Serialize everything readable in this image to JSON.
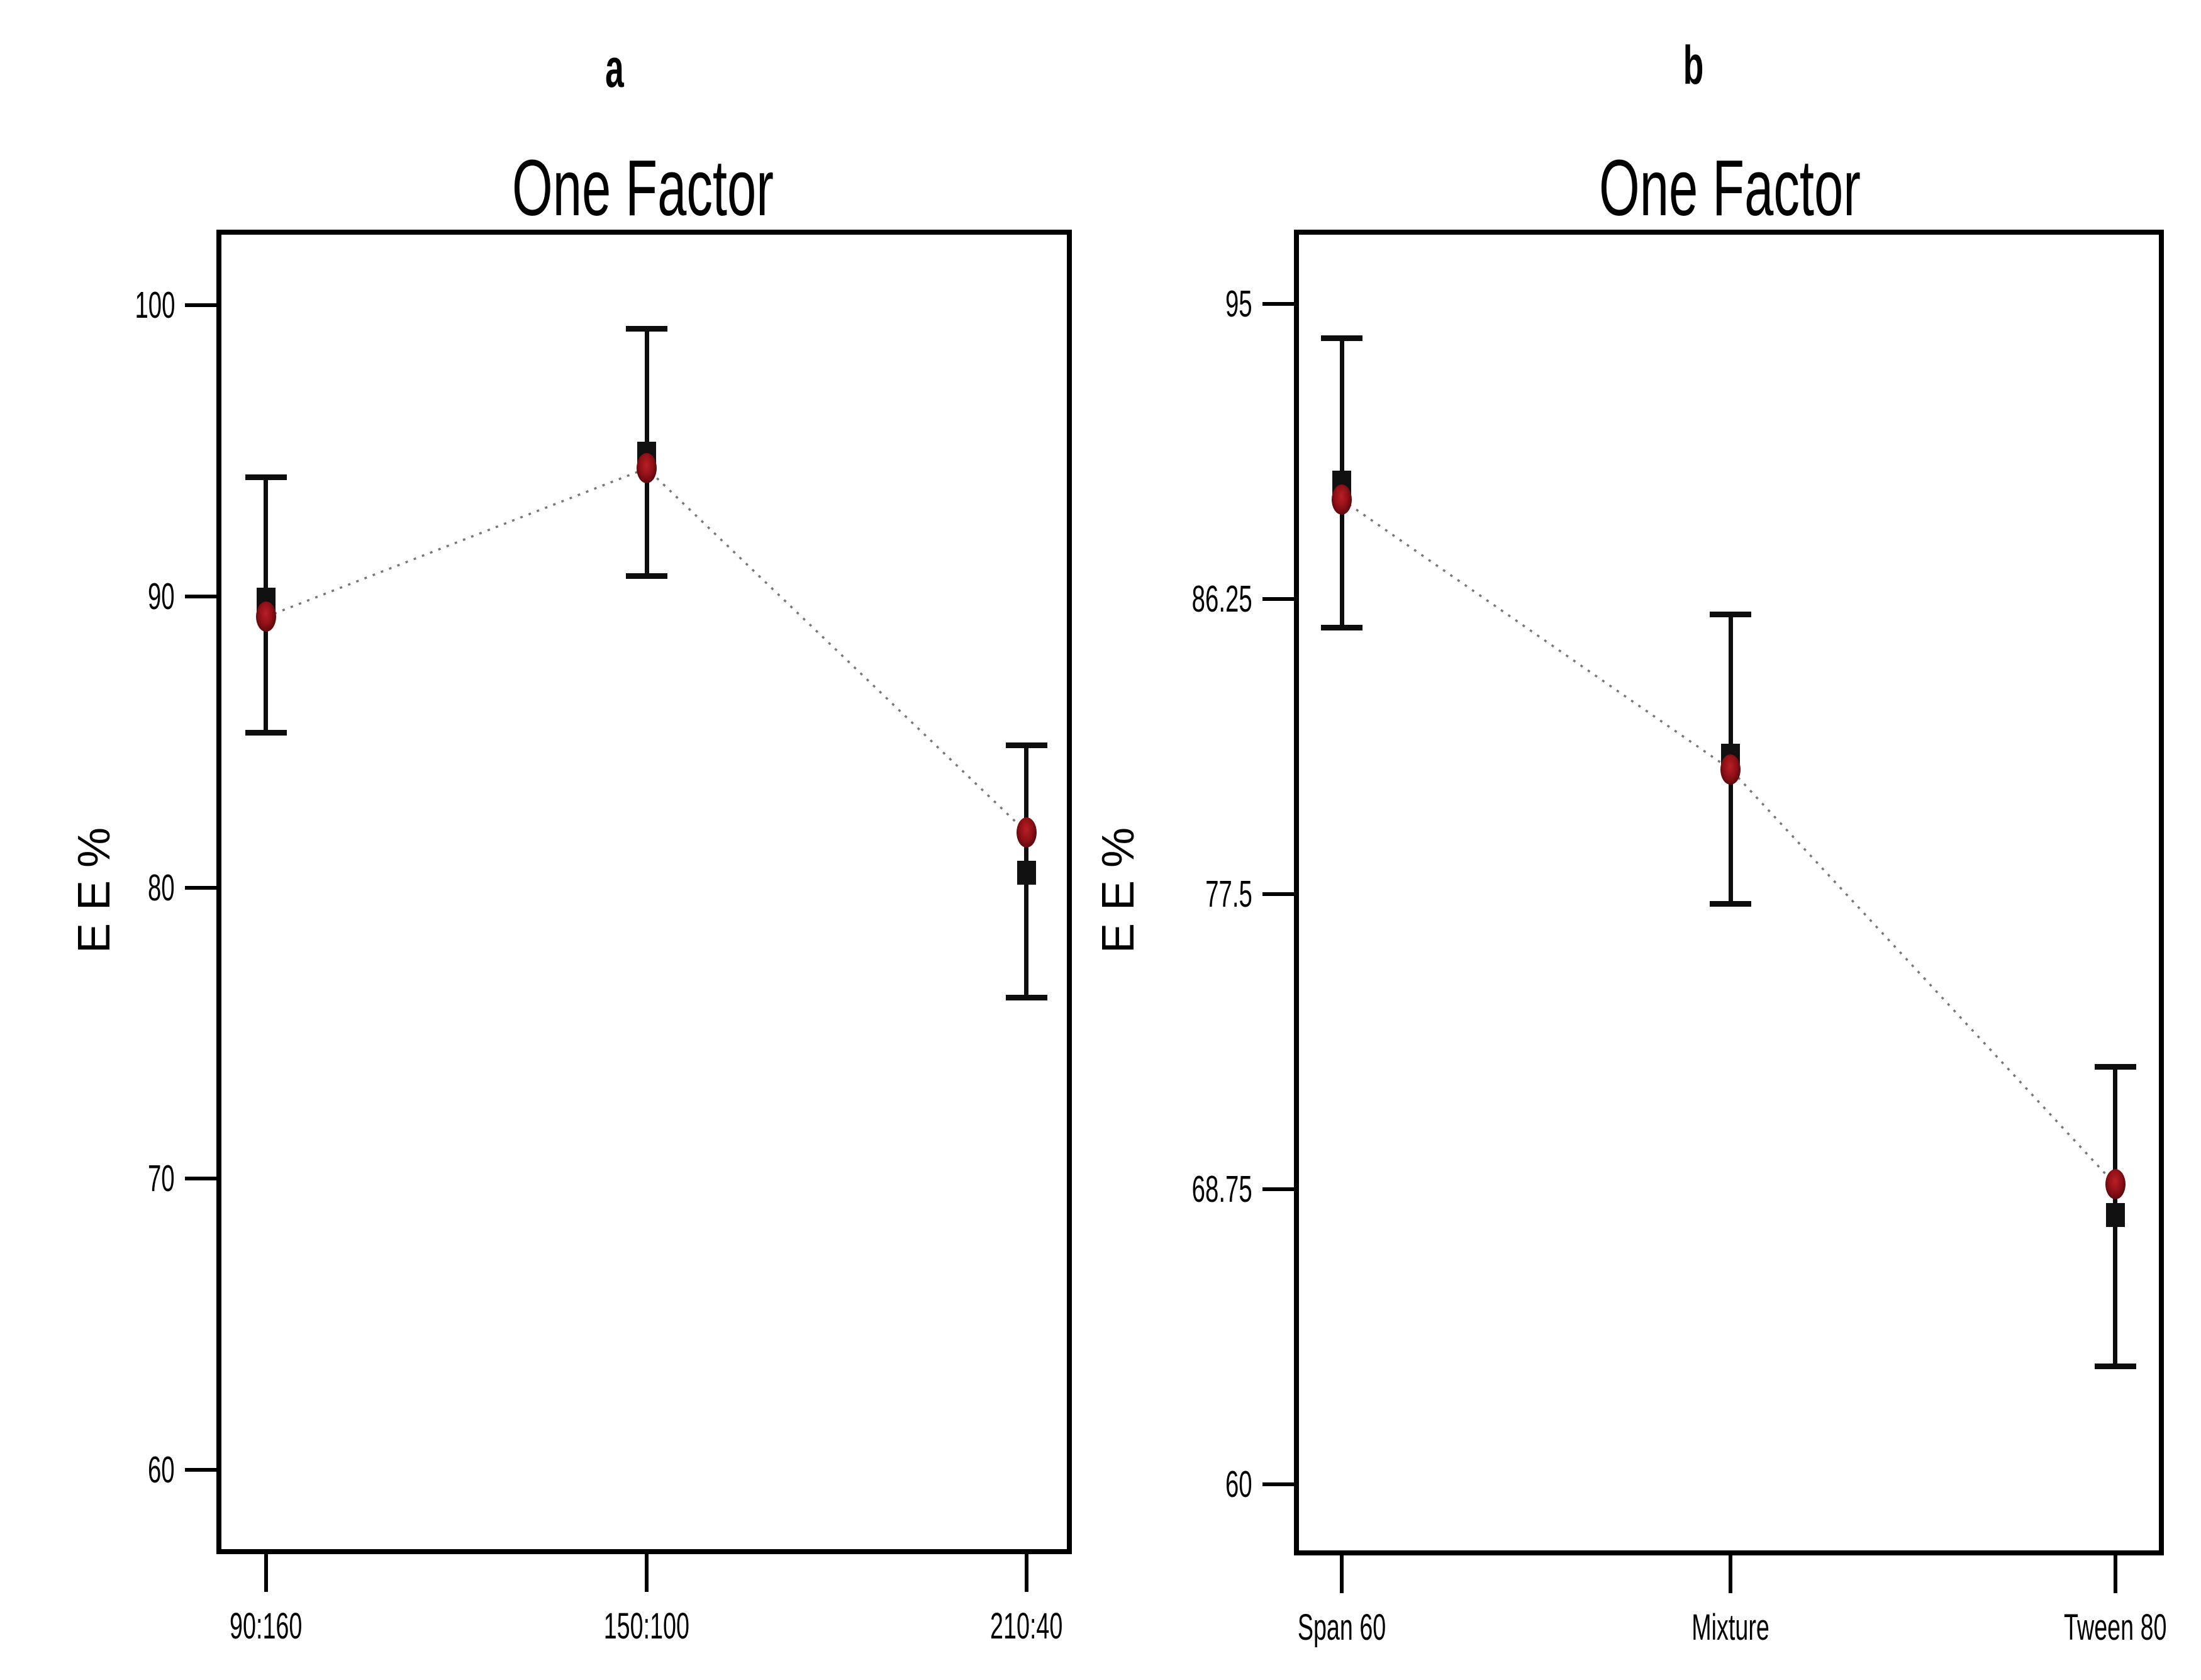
{
  "figure": {
    "background": "#ffffff",
    "description": "Two one-factor effect plots with error bars"
  },
  "panels": [
    {
      "label": "a"
    },
    {
      "label": "b"
    }
  ],
  "colors": {
    "axis": "#000000",
    "text": "#000000",
    "square_marker": "#111111",
    "circle_marker": "#8c1016",
    "connector_line": "#777777",
    "error_bar": "#0d0d0d"
  },
  "chart_data": [
    {
      "type": "line",
      "panel": "a",
      "title": "One Factor",
      "xlabel": "",
      "ylabel": "E E %",
      "categories": [
        "90:160",
        "150:100",
        "210:40"
      ],
      "yticks": [
        100,
        90,
        80,
        70,
        60
      ],
      "ytick_labels": [
        "100",
        "90",
        "80",
        "70",
        "60"
      ],
      "ylim": [
        57.1,
        102.6
      ],
      "grid": false,
      "legend_position": "none",
      "series": [
        {
          "name": "predicted mean (black square)",
          "marker": "square",
          "color": "#111111",
          "values": [
            89.9,
            94.9,
            80.5
          ]
        },
        {
          "name": "design point (dark red circle)",
          "marker": "circle",
          "color": "#8c1016",
          "values": [
            89.3,
            94.4,
            81.9
          ]
        }
      ],
      "error_bars": {
        "high": [
          94.1,
          99.2,
          84.9
        ],
        "low": [
          85.3,
          90.7,
          76.2
        ]
      },
      "connector": "dotted line between points"
    },
    {
      "type": "line",
      "panel": "b",
      "title": "One Factor",
      "xlabel": "",
      "ylabel": "E E %",
      "categories": [
        "Span 60",
        "Mixture",
        "Tween 80"
      ],
      "yticks": [
        95,
        86.25,
        77.5,
        68.75,
        60
      ],
      "ytick_labels": [
        "95",
        "86.25",
        "77.5",
        "68.75",
        "60"
      ],
      "ylim": [
        57.9,
        97.2
      ],
      "grid": false,
      "legend_position": "none",
      "series": [
        {
          "name": "predicted mean (black square)",
          "marker": "square",
          "color": "#111111",
          "values": [
            89.7,
            81.6,
            68.0
          ]
        },
        {
          "name": "design point (dark red circle)",
          "marker": "circle",
          "color": "#8c1016",
          "values": [
            89.2,
            81.2,
            68.9
          ]
        }
      ],
      "error_bars": {
        "high": [
          94.0,
          85.8,
          72.4
        ],
        "low": [
          85.4,
          77.2,
          63.5
        ]
      },
      "connector": "dotted line between points"
    }
  ]
}
